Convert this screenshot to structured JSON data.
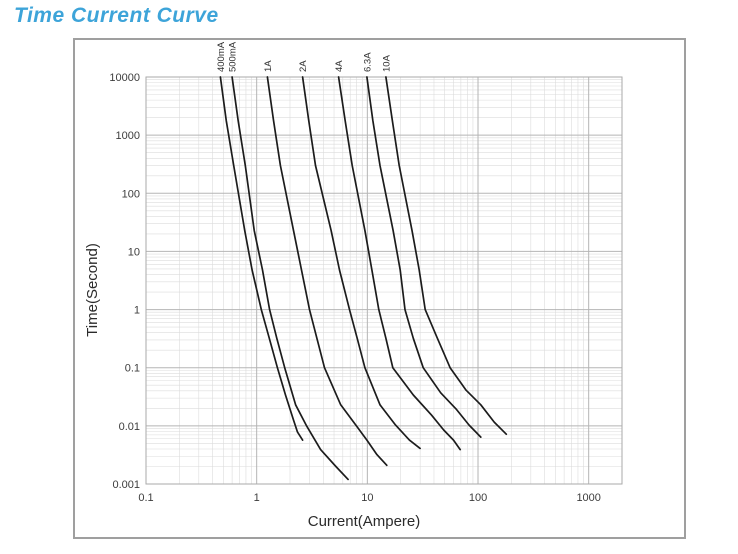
{
  "page": {
    "title": "Time Current Curve",
    "title_color": "#3da4d9"
  },
  "chart_data": {
    "type": "line",
    "title": "Time Current Curve",
    "xlabel": "Current(Ampere)",
    "ylabel": "Time(Second)",
    "x_scale": "log",
    "y_scale": "log",
    "xlim": [
      0.1,
      2000
    ],
    "ylim": [
      0.001,
      10000
    ],
    "x_ticks": [
      0.1,
      1,
      10,
      100,
      1000
    ],
    "x_tick_labels": [
      "0.1",
      "1",
      "10",
      "100",
      "1000"
    ],
    "y_ticks": [
      10000,
      1000,
      100,
      10,
      1,
      0.1,
      0.01,
      0.001
    ],
    "y_tick_labels": [
      "10000",
      "1000",
      "100",
      "10",
      "1",
      "0.1",
      "0.01",
      "0.001"
    ],
    "grid": true,
    "minor_grid": true,
    "legend_position": "labels-above-curves",
    "line_color": "#1c1c1c",
    "grid_minor_color": "#dcdcdc",
    "grid_major_color": "#b5b5b5",
    "series": [
      {
        "name": "400mA",
        "points": [
          [
            0.47,
            10000
          ],
          [
            0.53,
            1800
          ],
          [
            0.62,
            300
          ],
          [
            0.78,
            23
          ],
          [
            0.91,
            4.8
          ],
          [
            1.1,
            1
          ],
          [
            1.3,
            0.32
          ],
          [
            1.54,
            0.1
          ],
          [
            1.82,
            0.034
          ],
          [
            2.15,
            0.0126
          ],
          [
            2.34,
            0.0078
          ],
          [
            2.6,
            0.0057
          ]
        ]
      },
      {
        "name": "500mA",
        "points": [
          [
            0.6,
            10000
          ],
          [
            0.68,
            1800
          ],
          [
            0.79,
            300
          ],
          [
            0.95,
            23
          ],
          [
            1.13,
            4.8
          ],
          [
            1.31,
            1
          ],
          [
            1.52,
            0.32
          ],
          [
            1.79,
            0.1
          ],
          [
            2.25,
            0.023
          ],
          [
            2.83,
            0.0099
          ],
          [
            3.78,
            0.0039
          ],
          [
            5.2,
            0.002
          ],
          [
            6.7,
            0.0012
          ]
        ]
      },
      {
        "name": "1A",
        "points": [
          [
            1.25,
            10000
          ],
          [
            1.42,
            1800
          ],
          [
            1.64,
            300
          ],
          [
            2.15,
            23
          ],
          [
            2.54,
            4.8
          ],
          [
            3,
            1
          ],
          [
            3.5,
            0.32
          ],
          [
            4.1,
            0.1
          ],
          [
            5.75,
            0.023
          ],
          [
            8,
            0.0099
          ],
          [
            9.9,
            0.0057
          ],
          [
            12.2,
            0.0032
          ],
          [
            15,
            0.0021
          ]
        ]
      },
      {
        "name": "2A",
        "points": [
          [
            2.6,
            10000
          ],
          [
            2.95,
            1800
          ],
          [
            3.4,
            300
          ],
          [
            4.7,
            23
          ],
          [
            5.6,
            4.8
          ],
          [
            6.9,
            1
          ],
          [
            8.1,
            0.32
          ],
          [
            9.5,
            0.1
          ],
          [
            13,
            0.023
          ],
          [
            18,
            0.0103
          ],
          [
            24,
            0.0057
          ],
          [
            30,
            0.0041
          ]
        ]
      },
      {
        "name": "4A",
        "points": [
          [
            5.5,
            10000
          ],
          [
            6.3,
            1800
          ],
          [
            7.3,
            300
          ],
          [
            9.5,
            23
          ],
          [
            11,
            4.8
          ],
          [
            12.7,
            1
          ],
          [
            14.7,
            0.32
          ],
          [
            17,
            0.1
          ],
          [
            26,
            0.034
          ],
          [
            38,
            0.0153
          ],
          [
            49,
            0.0085
          ],
          [
            60,
            0.0057
          ],
          [
            69,
            0.0039
          ]
        ]
      },
      {
        "name": "6.3A",
        "points": [
          [
            9.9,
            10000
          ],
          [
            11.2,
            1800
          ],
          [
            13,
            300
          ],
          [
            17.1,
            23
          ],
          [
            19.8,
            4.8
          ],
          [
            21.9,
            1
          ],
          [
            26,
            0.32
          ],
          [
            32,
            0.1
          ],
          [
            46,
            0.037
          ],
          [
            64,
            0.019
          ],
          [
            83,
            0.0103
          ],
          [
            106,
            0.0064
          ]
        ]
      },
      {
        "name": "10A",
        "points": [
          [
            14.7,
            10000
          ],
          [
            16.8,
            1800
          ],
          [
            19.4,
            300
          ],
          [
            25.3,
            23
          ],
          [
            29.4,
            4.8
          ],
          [
            33.3,
            1
          ],
          [
            43,
            0.32
          ],
          [
            56,
            0.1
          ],
          [
            78,
            0.041
          ],
          [
            106,
            0.023
          ],
          [
            140,
            0.0116
          ],
          [
            180,
            0.0072
          ]
        ]
      }
    ]
  }
}
